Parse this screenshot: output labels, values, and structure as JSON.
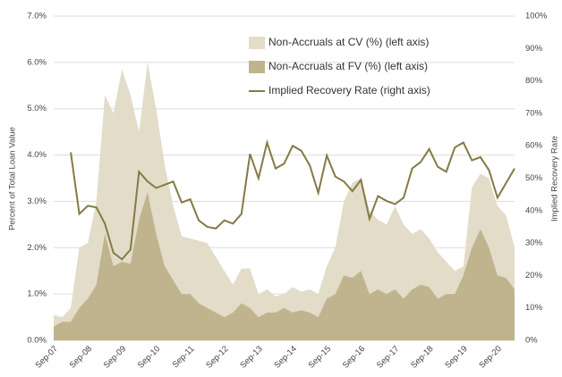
{
  "chart_data": {
    "type": "area-line",
    "categories": [
      "Sep-07",
      null,
      null,
      null,
      "Sep-08",
      null,
      null,
      null,
      "Sep-09",
      null,
      null,
      null,
      "Sep-10",
      null,
      null,
      null,
      "Sep-11",
      null,
      null,
      null,
      "Sep-12",
      null,
      null,
      null,
      "Sep-13",
      null,
      null,
      null,
      "Sep-14",
      null,
      null,
      null,
      "Sep-15",
      null,
      null,
      null,
      "Sep-16",
      null,
      null,
      null,
      "Sep-17",
      null,
      null,
      null,
      "Sep-18",
      null,
      null,
      null,
      "Sep-19",
      null,
      null,
      null,
      "Sep-20",
      null,
      null
    ],
    "series": [
      {
        "name": "Non-Accruals at CV (%) (left axis)",
        "color": "#e2dcc9",
        "kind": "area",
        "values": [
          0.55,
          0.5,
          0.7,
          2.0,
          2.1,
          3.0,
          5.3,
          4.9,
          5.85,
          5.3,
          4.5,
          6.0,
          5.0,
          3.8,
          2.9,
          2.25,
          2.2,
          2.15,
          2.1,
          1.8,
          1.5,
          1.2,
          1.55,
          1.55,
          1.0,
          1.1,
          0.95,
          1.0,
          1.15,
          1.05,
          1.1,
          1.0,
          1.6,
          2.0,
          3.0,
          3.4,
          3.5,
          2.8,
          2.6,
          2.5,
          2.9,
          2.5,
          2.3,
          2.4,
          2.2,
          1.9,
          1.7,
          1.5,
          1.6,
          3.3,
          3.6,
          3.5,
          2.9,
          2.7,
          2.0
        ]
      },
      {
        "name": "Non-Accruals at FV (%) (left axis)",
        "color": "#c0b48e",
        "kind": "area",
        "values": [
          0.3,
          0.4,
          0.4,
          0.7,
          0.9,
          1.2,
          2.3,
          1.6,
          1.7,
          1.65,
          2.6,
          3.2,
          2.3,
          1.6,
          1.3,
          1.0,
          1.0,
          0.8,
          0.7,
          0.6,
          0.5,
          0.6,
          0.8,
          0.7,
          0.5,
          0.6,
          0.6,
          0.7,
          0.6,
          0.65,
          0.6,
          0.5,
          0.9,
          1.0,
          1.4,
          1.35,
          1.5,
          1.0,
          1.1,
          1.0,
          1.1,
          0.9,
          1.1,
          1.2,
          1.15,
          0.9,
          1.0,
          1.0,
          1.4,
          2.0,
          2.4,
          2.0,
          1.4,
          1.35,
          1.1
        ]
      },
      {
        "name": "Implied Recovery Rate (right axis)",
        "color": "#857a45",
        "kind": "line",
        "axis": "y2",
        "values": [
          null,
          null,
          58,
          39,
          41.5,
          41,
          36,
          27,
          25,
          28,
          52,
          49,
          47,
          48,
          49,
          42.5,
          43.5,
          37,
          35,
          34.5,
          37,
          36,
          39,
          57.5,
          50,
          61,
          53,
          54.5,
          60,
          58.5,
          54,
          45.5,
          57,
          50.5,
          49,
          46,
          49.5,
          37.5,
          44.5,
          43,
          42,
          44,
          53,
          55,
          59,
          53.5,
          52,
          59.5,
          61,
          55.5,
          56.5,
          52.5,
          44,
          48.5,
          53
        ]
      }
    ],
    "y_label": "Percent of Total Loan Value",
    "y2_label": "Implied Recovery Rate",
    "ylim": [
      0,
      7
    ],
    "yticks": [
      {
        "value": 0,
        "label": "0.0%"
      },
      {
        "value": 1,
        "label": "1.0%"
      },
      {
        "value": 2,
        "label": "2.0%"
      },
      {
        "value": 3,
        "label": "3.0%"
      },
      {
        "value": 4,
        "label": "4.0%"
      },
      {
        "value": 5,
        "label": "5.0%"
      },
      {
        "value": 6,
        "label": "6.0%"
      },
      {
        "value": 7,
        "label": "7.0%"
      }
    ],
    "y2lim": [
      0,
      100
    ],
    "y2ticks": [
      {
        "value": 0,
        "label": "0%"
      },
      {
        "value": 10,
        "label": "10%"
      },
      {
        "value": 20,
        "label": "20%"
      },
      {
        "value": 30,
        "label": "30%"
      },
      {
        "value": 40,
        "label": "40%"
      },
      {
        "value": 50,
        "label": "50%"
      },
      {
        "value": 60,
        "label": "60%"
      },
      {
        "value": 70,
        "label": "70%"
      },
      {
        "value": 80,
        "label": "80%"
      },
      {
        "value": 90,
        "label": "90%"
      },
      {
        "value": 100,
        "label": "100%"
      }
    ],
    "grid": true
  }
}
